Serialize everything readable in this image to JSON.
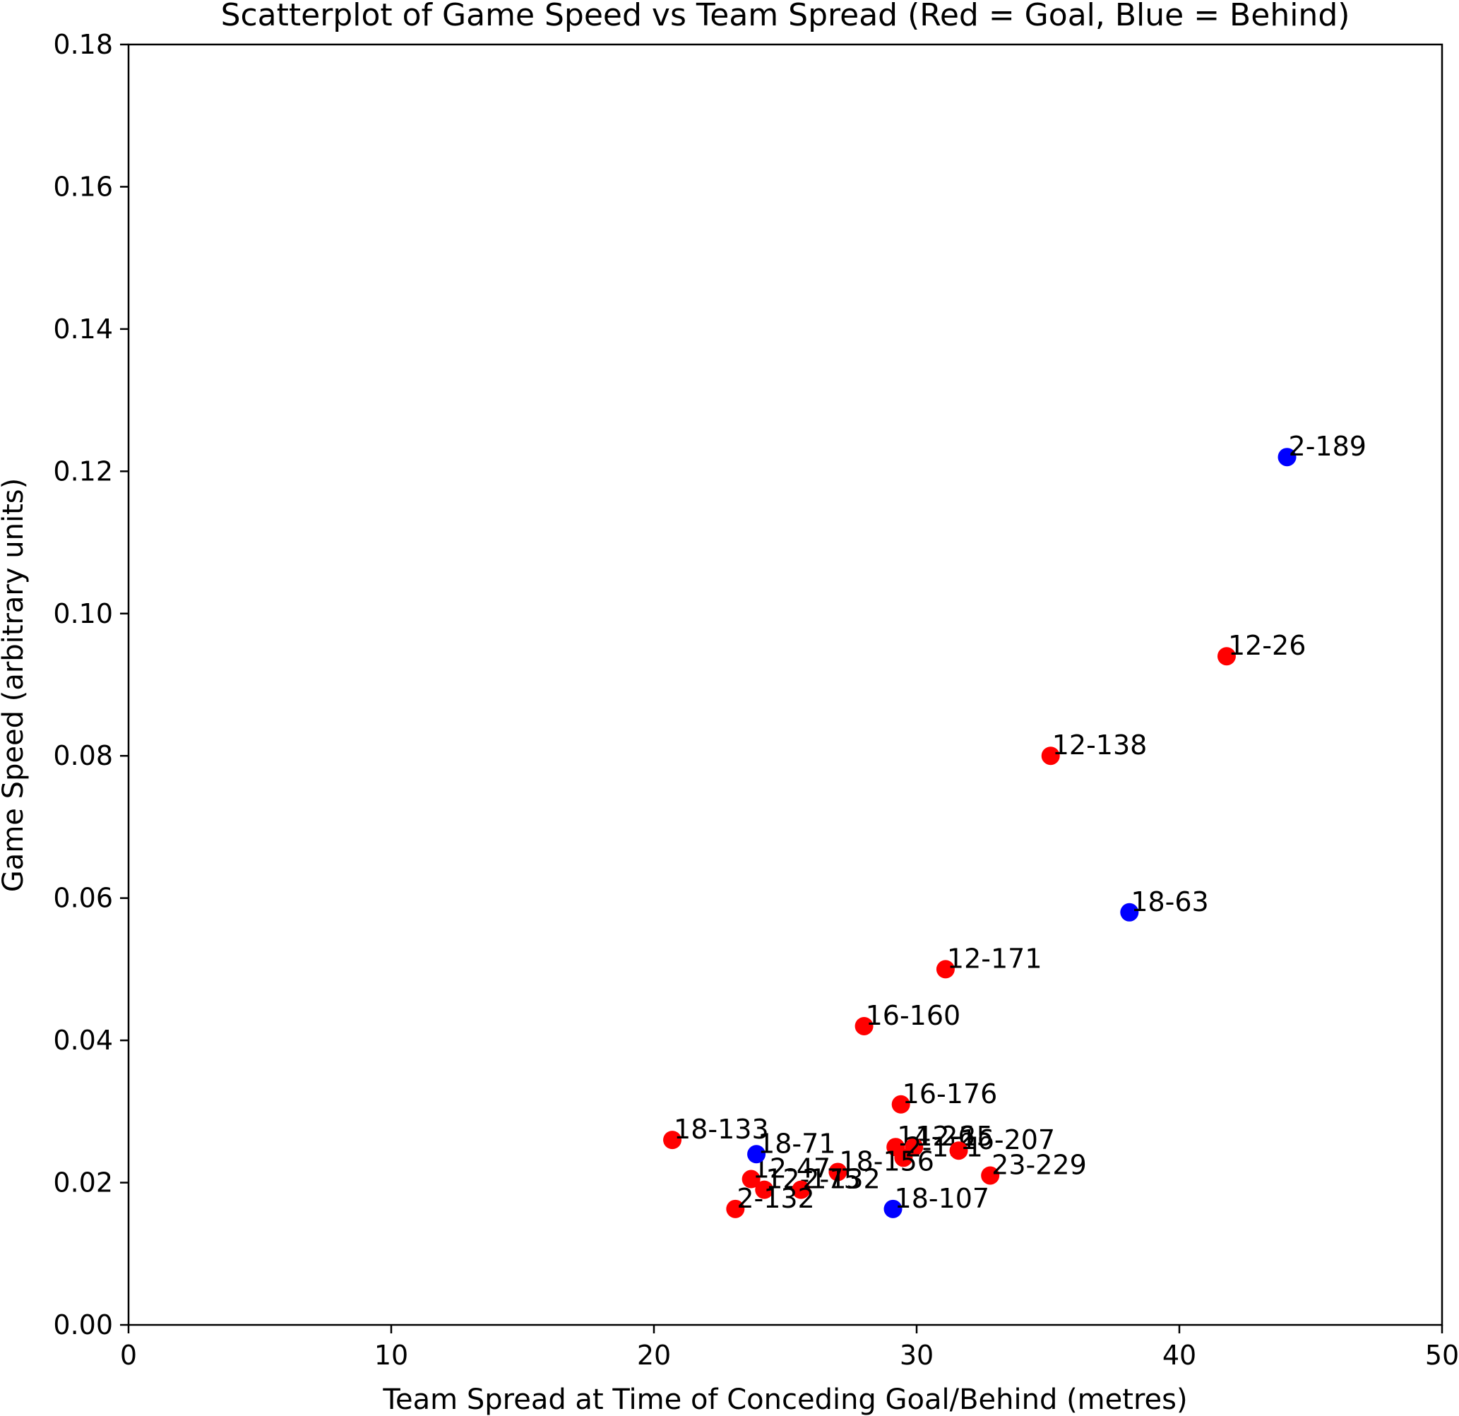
{
  "chart_data": {
    "type": "scatter",
    "title": "Scatterplot of Game Speed vs Team Spread (Red = Goal, Blue = Behind)",
    "xlabel": "Team Spread at Time of Conceding Goal/Behind (metres)",
    "ylabel": "Game Speed (arbitrary units)",
    "xlim": [
      0,
      50
    ],
    "ylim": [
      0,
      0.18
    ],
    "xticks": [
      0,
      10,
      20,
      30,
      40,
      50
    ],
    "yticks": [
      0.0,
      0.02,
      0.04,
      0.06,
      0.08,
      0.1,
      0.12,
      0.14,
      0.16,
      0.18
    ],
    "ytick_labels": [
      "0.00",
      "0.02",
      "0.04",
      "0.06",
      "0.08",
      "0.10",
      "0.12",
      "0.14",
      "0.16",
      "0.18"
    ],
    "grid": false,
    "colors": {
      "goal": "#ff0000",
      "behind": "#0000ff"
    },
    "series": [
      {
        "category": "goal",
        "points": [
          {
            "label": "12-26",
            "x": 41.8,
            "y": 0.094
          },
          {
            "label": "12-138",
            "x": 35.1,
            "y": 0.08
          },
          {
            "label": "12-171",
            "x": 31.1,
            "y": 0.05
          },
          {
            "label": "16-160",
            "x": 28.0,
            "y": 0.042
          },
          {
            "label": "16-176",
            "x": 29.4,
            "y": 0.031
          },
          {
            "label": "18-133",
            "x": 20.7,
            "y": 0.026
          },
          {
            "label": "14-26",
            "x": 29.2,
            "y": 0.025
          },
          {
            "label": "12-25",
            "x": 29.9,
            "y": 0.025
          },
          {
            "label": "2-151",
            "x": 29.5,
            "y": 0.0235
          },
          {
            "label": "16-207",
            "x": 31.6,
            "y": 0.0245
          },
          {
            "label": "23-229",
            "x": 32.8,
            "y": 0.021
          },
          {
            "label": "18-156",
            "x": 27.0,
            "y": 0.0215
          },
          {
            "label": "12-47",
            "x": 23.7,
            "y": 0.0205
          },
          {
            "label": "12-175",
            "x": 24.2,
            "y": 0.019
          },
          {
            "label": "2-132",
            "x": 25.6,
            "y": 0.019
          },
          {
            "label": "2-132",
            "x": 23.1,
            "y": 0.0163
          }
        ]
      },
      {
        "category": "behind",
        "points": [
          {
            "label": "2-189",
            "x": 44.1,
            "y": 0.122
          },
          {
            "label": "18-63",
            "x": 38.1,
            "y": 0.058
          },
          {
            "label": "18-71",
            "x": 23.9,
            "y": 0.024
          },
          {
            "label": "18-107",
            "x": 29.1,
            "y": 0.0163
          }
        ]
      }
    ]
  }
}
